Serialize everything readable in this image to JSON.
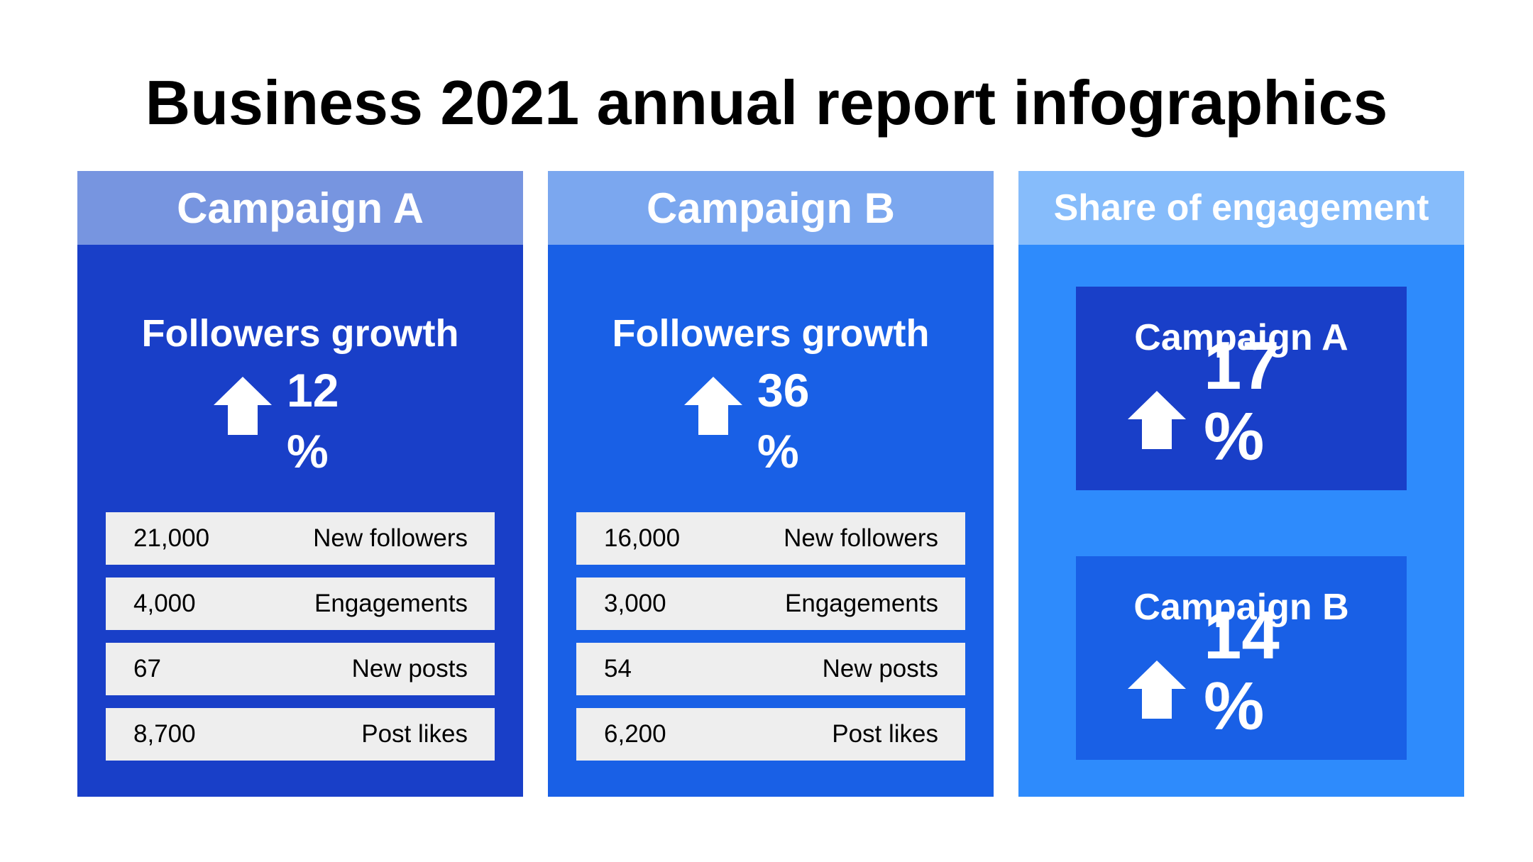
{
  "title": "Business 2021 annual report infographics",
  "colors": {
    "campaign_a_header": "#7795e0",
    "campaign_a_body": "#193fc8",
    "campaign_b_header": "#7ba7ef",
    "campaign_b_body": "#1960e6",
    "share_header": "#86bcfb",
    "share_body": "#2e8bfc",
    "stat_row_bg": "#eeeeee"
  },
  "campaign_a": {
    "header": "Campaign A",
    "metric_title": "Followers growth",
    "growth_value": "12",
    "growth_unit": "%",
    "arrow_icon": "arrow-up-icon",
    "stats": [
      {
        "value": "21,000",
        "label": "New followers"
      },
      {
        "value": "4,000",
        "label": "Engagements"
      },
      {
        "value": "67",
        "label": "New posts"
      },
      {
        "value": "8,700",
        "label": "Post likes"
      }
    ]
  },
  "campaign_b": {
    "header": "Campaign B",
    "metric_title": "Followers growth",
    "growth_value": "36",
    "growth_unit": "%",
    "arrow_icon": "arrow-up-icon",
    "stats": [
      {
        "value": "16,000",
        "label": "New followers"
      },
      {
        "value": "3,000",
        "label": "Engagements"
      },
      {
        "value": "54",
        "label": "New posts"
      },
      {
        "value": "6,200",
        "label": "Post likes"
      }
    ]
  },
  "share": {
    "header": "Share of engagement",
    "items": [
      {
        "label": "Campaign A",
        "value": "17",
        "unit": "%"
      },
      {
        "label": "Campaign B",
        "value": "14",
        "unit": "%"
      }
    ]
  }
}
